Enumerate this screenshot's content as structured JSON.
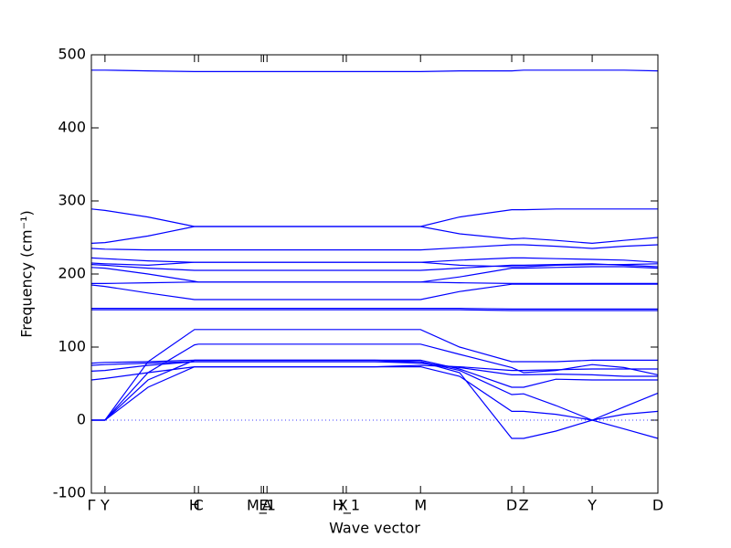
{
  "chart_data": {
    "type": "line",
    "xlabel": "Wave vector",
    "ylabel": "Frequency (cm⁻¹)",
    "color": "#0000ff",
    "xlim": [
      0,
      1
    ],
    "ylim": [
      -100,
      500
    ],
    "yticks": [
      -100,
      0,
      100,
      200,
      300,
      400,
      500
    ],
    "xticks": [
      {
        "value": 0,
        "label": "Γ"
      },
      {
        "value": 0.024,
        "label": "Y"
      },
      {
        "value": 0.182,
        "label": "H"
      },
      {
        "value": 0.189,
        "label": "C"
      },
      {
        "value": 0.3,
        "label": "M_1"
      },
      {
        "value": 0.304,
        "label": "E"
      },
      {
        "value": 0.31,
        "label": "A"
      },
      {
        "value": 0.444,
        "label": "X"
      },
      {
        "value": 0.45,
        "label": "H_1"
      },
      {
        "value": 0.581,
        "label": "M"
      },
      {
        "value": 0.742,
        "label": "D"
      },
      {
        "value": 0.763,
        "label": "Z"
      },
      {
        "value": 0.884,
        "label": "Y"
      },
      {
        "value": 1.0,
        "label": "D"
      }
    ],
    "x": [
      0,
      0.024,
      0.1,
      0.182,
      0.189,
      0.3,
      0.444,
      0.5,
      0.581,
      0.65,
      0.742,
      0.763,
      0.82,
      0.884,
      0.94,
      1.0
    ],
    "series": [
      {
        "values": [
          479,
          479,
          478,
          477,
          477,
          477,
          477,
          477,
          477,
          478,
          478,
          479,
          479,
          479,
          479,
          478
        ]
      },
      {
        "values": [
          289,
          287,
          278,
          265,
          265,
          265,
          265,
          265,
          265,
          278,
          288,
          288,
          289,
          289,
          289,
          289
        ]
      },
      {
        "values": [
          242,
          243,
          252,
          265,
          265,
          265,
          265,
          265,
          265,
          255,
          248,
          249,
          246,
          242,
          246,
          250
        ]
      },
      {
        "values": [
          235,
          234,
          233,
          233,
          233,
          233,
          233,
          233,
          233,
          236,
          240,
          240,
          238,
          235,
          238,
          240
        ]
      },
      {
        "values": [
          222,
          221,
          218,
          216,
          216,
          216,
          216,
          216,
          216,
          219,
          222,
          222,
          221,
          220,
          219,
          216
        ]
      },
      {
        "values": [
          215,
          214,
          212,
          216,
          216,
          216,
          216,
          216,
          216,
          212,
          210,
          210,
          212,
          213,
          213,
          214
        ]
      },
      {
        "values": [
          213,
          212,
          208,
          205,
          205,
          205,
          205,
          205,
          205,
          208,
          212,
          212,
          213,
          214,
          212,
          210
        ]
      },
      {
        "values": [
          209,
          208,
          200,
          190,
          189,
          189,
          189,
          189,
          189,
          196,
          208,
          208,
          209,
          210,
          210,
          208
        ]
      },
      {
        "values": [
          187,
          187,
          188,
          189,
          189,
          189,
          189,
          189,
          189,
          188,
          187,
          187,
          187,
          187,
          187,
          187
        ]
      },
      {
        "values": [
          185,
          183,
          174,
          165,
          165,
          165,
          165,
          165,
          165,
          176,
          186,
          186,
          186,
          186,
          186,
          186
        ]
      },
      {
        "values": [
          153,
          153,
          153,
          153,
          153,
          153,
          153,
          153,
          153,
          153,
          152,
          152,
          152,
          152,
          152,
          152
        ]
      },
      {
        "values": [
          151,
          151,
          151,
          151,
          151,
          151,
          151,
          151,
          151,
          151,
          150,
          150,
          150,
          150,
          150,
          150
        ]
      },
      {
        "values": [
          0,
          0,
          80,
          124,
          124,
          124,
          124,
          124,
          124,
          100,
          80,
          80,
          80,
          82,
          82,
          82
        ]
      },
      {
        "values": [
          0,
          0,
          65,
          103,
          104,
          104,
          104,
          104,
          104,
          90,
          72,
          65,
          68,
          76,
          72,
          62
        ]
      },
      {
        "values": [
          0,
          0,
          55,
          82,
          82,
          82,
          82,
          82,
          82,
          70,
          45,
          45,
          56,
          55,
          55,
          55
        ]
      },
      {
        "values": [
          0,
          0,
          45,
          73,
          73,
          73,
          73,
          73,
          73,
          60,
          12,
          12,
          8,
          0,
          8,
          12
        ]
      },
      {
        "values": [
          67,
          68,
          75,
          80,
          80,
          80,
          80,
          80,
          80,
          65,
          -25,
          -25,
          -15,
          0,
          -12,
          -25
        ]
      },
      {
        "values": [
          78,
          79,
          80,
          82,
          82,
          82,
          82,
          82,
          80,
          68,
          35,
          36,
          20,
          0,
          18,
          37
        ]
      },
      {
        "values": [
          75,
          76,
          78,
          80,
          80,
          80,
          80,
          80,
          78,
          72,
          62,
          62,
          63,
          62,
          60,
          60
        ]
      },
      {
        "values": [
          55,
          57,
          65,
          73,
          73,
          73,
          73,
          73,
          75,
          73,
          68,
          68,
          69,
          70,
          70,
          70
        ]
      }
    ]
  }
}
